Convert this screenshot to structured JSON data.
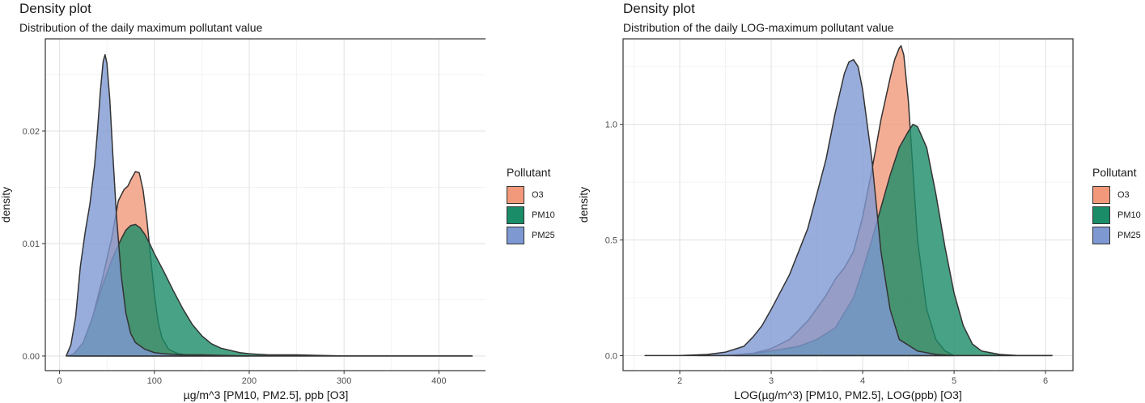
{
  "charts": [
    {
      "title": "Density plot",
      "subtitle": "Distribution of the daily maximum pollutant value",
      "legend": {
        "title": "Pollutant",
        "entries": [
          {
            "label": "O3",
            "color": "#f1997a"
          },
          {
            "label": "PM10",
            "color": "#1a8c68"
          },
          {
            "label": "PM25",
            "color": "#7e98d2"
          }
        ]
      }
    },
    {
      "title": "Density plot",
      "subtitle": "Distribution of the daily LOG-maximum pollutant value",
      "legend": {
        "title": "Pollutant",
        "entries": [
          {
            "label": "O3",
            "color": "#f1997a"
          },
          {
            "label": "PM10",
            "color": "#1a8c68"
          },
          {
            "label": "PM25",
            "color": "#7e98d2"
          }
        ]
      }
    }
  ],
  "chart_data": [
    {
      "type": "area",
      "title": "Density plot",
      "subtitle": "Distribution of the daily maximum pollutant value",
      "xlabel": "µg/m^3 [PM10, PM2.5], ppb [O3]",
      "ylabel": "density",
      "xlim": [
        -15,
        450
      ],
      "ylim": [
        -0.0013,
        0.0282
      ],
      "x_ticks": [
        0,
        100,
        200,
        300,
        400
      ],
      "x_tick_labels": [
        "0",
        "100",
        "200",
        "300",
        "400"
      ],
      "y_ticks": [
        0,
        0.01,
        0.02
      ],
      "y_tick_labels": [
        "0.00",
        "0.01",
        "0.02"
      ],
      "grid": true,
      "legend_position": "right",
      "series": [
        {
          "name": "O3",
          "color": "#f1997a",
          "x": [
            15,
            25,
            35,
            45,
            55,
            62,
            68,
            72,
            76,
            80,
            84,
            88,
            92,
            96,
            100,
            104,
            108,
            115,
            125,
            135,
            150,
            170,
            200
          ],
          "y": [
            0.0001,
            0.0012,
            0.0035,
            0.0068,
            0.0105,
            0.0138,
            0.0148,
            0.0151,
            0.0158,
            0.0164,
            0.0163,
            0.0148,
            0.0122,
            0.0088,
            0.0055,
            0.003,
            0.0016,
            0.0006,
            0.0002,
            0.0001,
            0.0001,
            0.0,
            0.0
          ]
        },
        {
          "name": "PM10",
          "color": "#1a8c68",
          "x": [
            8,
            15,
            25,
            35,
            45,
            55,
            60,
            65,
            70,
            75,
            80,
            85,
            90,
            95,
            100,
            110,
            120,
            130,
            140,
            150,
            160,
            170,
            180,
            190,
            200,
            220,
            250,
            300,
            350,
            435
          ],
          "y": [
            0.0,
            0.0002,
            0.0012,
            0.0035,
            0.0062,
            0.0085,
            0.0095,
            0.0104,
            0.0112,
            0.0116,
            0.0117,
            0.0114,
            0.0108,
            0.01,
            0.0091,
            0.0075,
            0.0058,
            0.0042,
            0.0028,
            0.0018,
            0.0011,
            0.0007,
            0.0005,
            0.0003,
            0.0002,
            0.0001,
            0.0001,
            0.0,
            0.0,
            0.0
          ]
        },
        {
          "name": "PM25",
          "color": "#7e98d2",
          "x": [
            7,
            12,
            17,
            22,
            27,
            32,
            37,
            40,
            43,
            46,
            48,
            50,
            53,
            56,
            60,
            65,
            70,
            75,
            80,
            90,
            100,
            110,
            130,
            150,
            200,
            300,
            435
          ],
          "y": [
            0.0,
            0.001,
            0.0035,
            0.008,
            0.011,
            0.0135,
            0.017,
            0.02,
            0.0235,
            0.0262,
            0.0268,
            0.026,
            0.0228,
            0.0182,
            0.0125,
            0.0072,
            0.0038,
            0.002,
            0.0012,
            0.0006,
            0.0003,
            0.0002,
            0.0001,
            0.0001,
            0.0,
            0.0,
            0.0
          ]
        }
      ]
    },
    {
      "type": "area",
      "title": "Density plot",
      "subtitle": "Distribution of the daily LOG-maximum pollutant value",
      "xlabel": "LOG(µg/m^3) [PM10, PM2.5], LOG(ppb) [O3]",
      "ylabel": "density",
      "xlim": [
        1.38,
        6.3
      ],
      "ylim": [
        -0.065,
        1.37
      ],
      "x_ticks": [
        2,
        3,
        4,
        5,
        6
      ],
      "x_tick_labels": [
        "2",
        "3",
        "4",
        "5",
        "6"
      ],
      "y_ticks": [
        0,
        0.5,
        1.0
      ],
      "y_tick_labels": [
        "0.0",
        "0.5",
        "1.0"
      ],
      "grid": true,
      "legend_position": "right",
      "series": [
        {
          "name": "O3",
          "color": "#f1997a",
          "x": [
            2.6,
            2.8,
            3.0,
            3.2,
            3.4,
            3.6,
            3.7,
            3.8,
            3.9,
            4.0,
            4.1,
            4.2,
            4.3,
            4.35,
            4.4,
            4.42,
            4.45,
            4.5,
            4.55,
            4.6,
            4.7,
            4.8,
            4.9,
            5.0
          ],
          "y": [
            0.0,
            0.01,
            0.03,
            0.07,
            0.15,
            0.26,
            0.33,
            0.38,
            0.45,
            0.6,
            0.8,
            1.02,
            1.2,
            1.28,
            1.33,
            1.34,
            1.3,
            1.1,
            0.8,
            0.5,
            0.2,
            0.07,
            0.02,
            0.0
          ]
        },
        {
          "name": "PM10",
          "color": "#1a8c68",
          "x": [
            2.2,
            2.5,
            2.8,
            3.0,
            3.3,
            3.5,
            3.7,
            3.9,
            4.0,
            4.1,
            4.2,
            4.3,
            4.4,
            4.5,
            4.55,
            4.6,
            4.7,
            4.8,
            4.9,
            5.0,
            5.1,
            5.2,
            5.3,
            5.5,
            5.7,
            6.07
          ],
          "y": [
            0.0,
            0.0,
            0.01,
            0.02,
            0.04,
            0.07,
            0.12,
            0.25,
            0.37,
            0.5,
            0.64,
            0.78,
            0.9,
            0.97,
            1.0,
            0.99,
            0.9,
            0.7,
            0.47,
            0.27,
            0.13,
            0.05,
            0.02,
            0.005,
            0.0,
            0.0
          ]
        },
        {
          "name": "PM25",
          "color": "#7e98d2",
          "x": [
            1.62,
            2.0,
            2.3,
            2.5,
            2.7,
            2.8,
            2.9,
            3.0,
            3.2,
            3.4,
            3.6,
            3.7,
            3.8,
            3.85,
            3.9,
            3.95,
            4.0,
            4.1,
            4.2,
            4.3,
            4.4,
            4.6,
            4.8,
            5.0,
            5.5,
            6.07
          ],
          "y": [
            0.0,
            0.0,
            0.005,
            0.015,
            0.04,
            0.08,
            0.13,
            0.2,
            0.35,
            0.55,
            0.85,
            1.05,
            1.22,
            1.27,
            1.28,
            1.25,
            1.15,
            0.85,
            0.45,
            0.2,
            0.07,
            0.02,
            0.005,
            0.0,
            0.0,
            0.0
          ]
        }
      ]
    }
  ]
}
